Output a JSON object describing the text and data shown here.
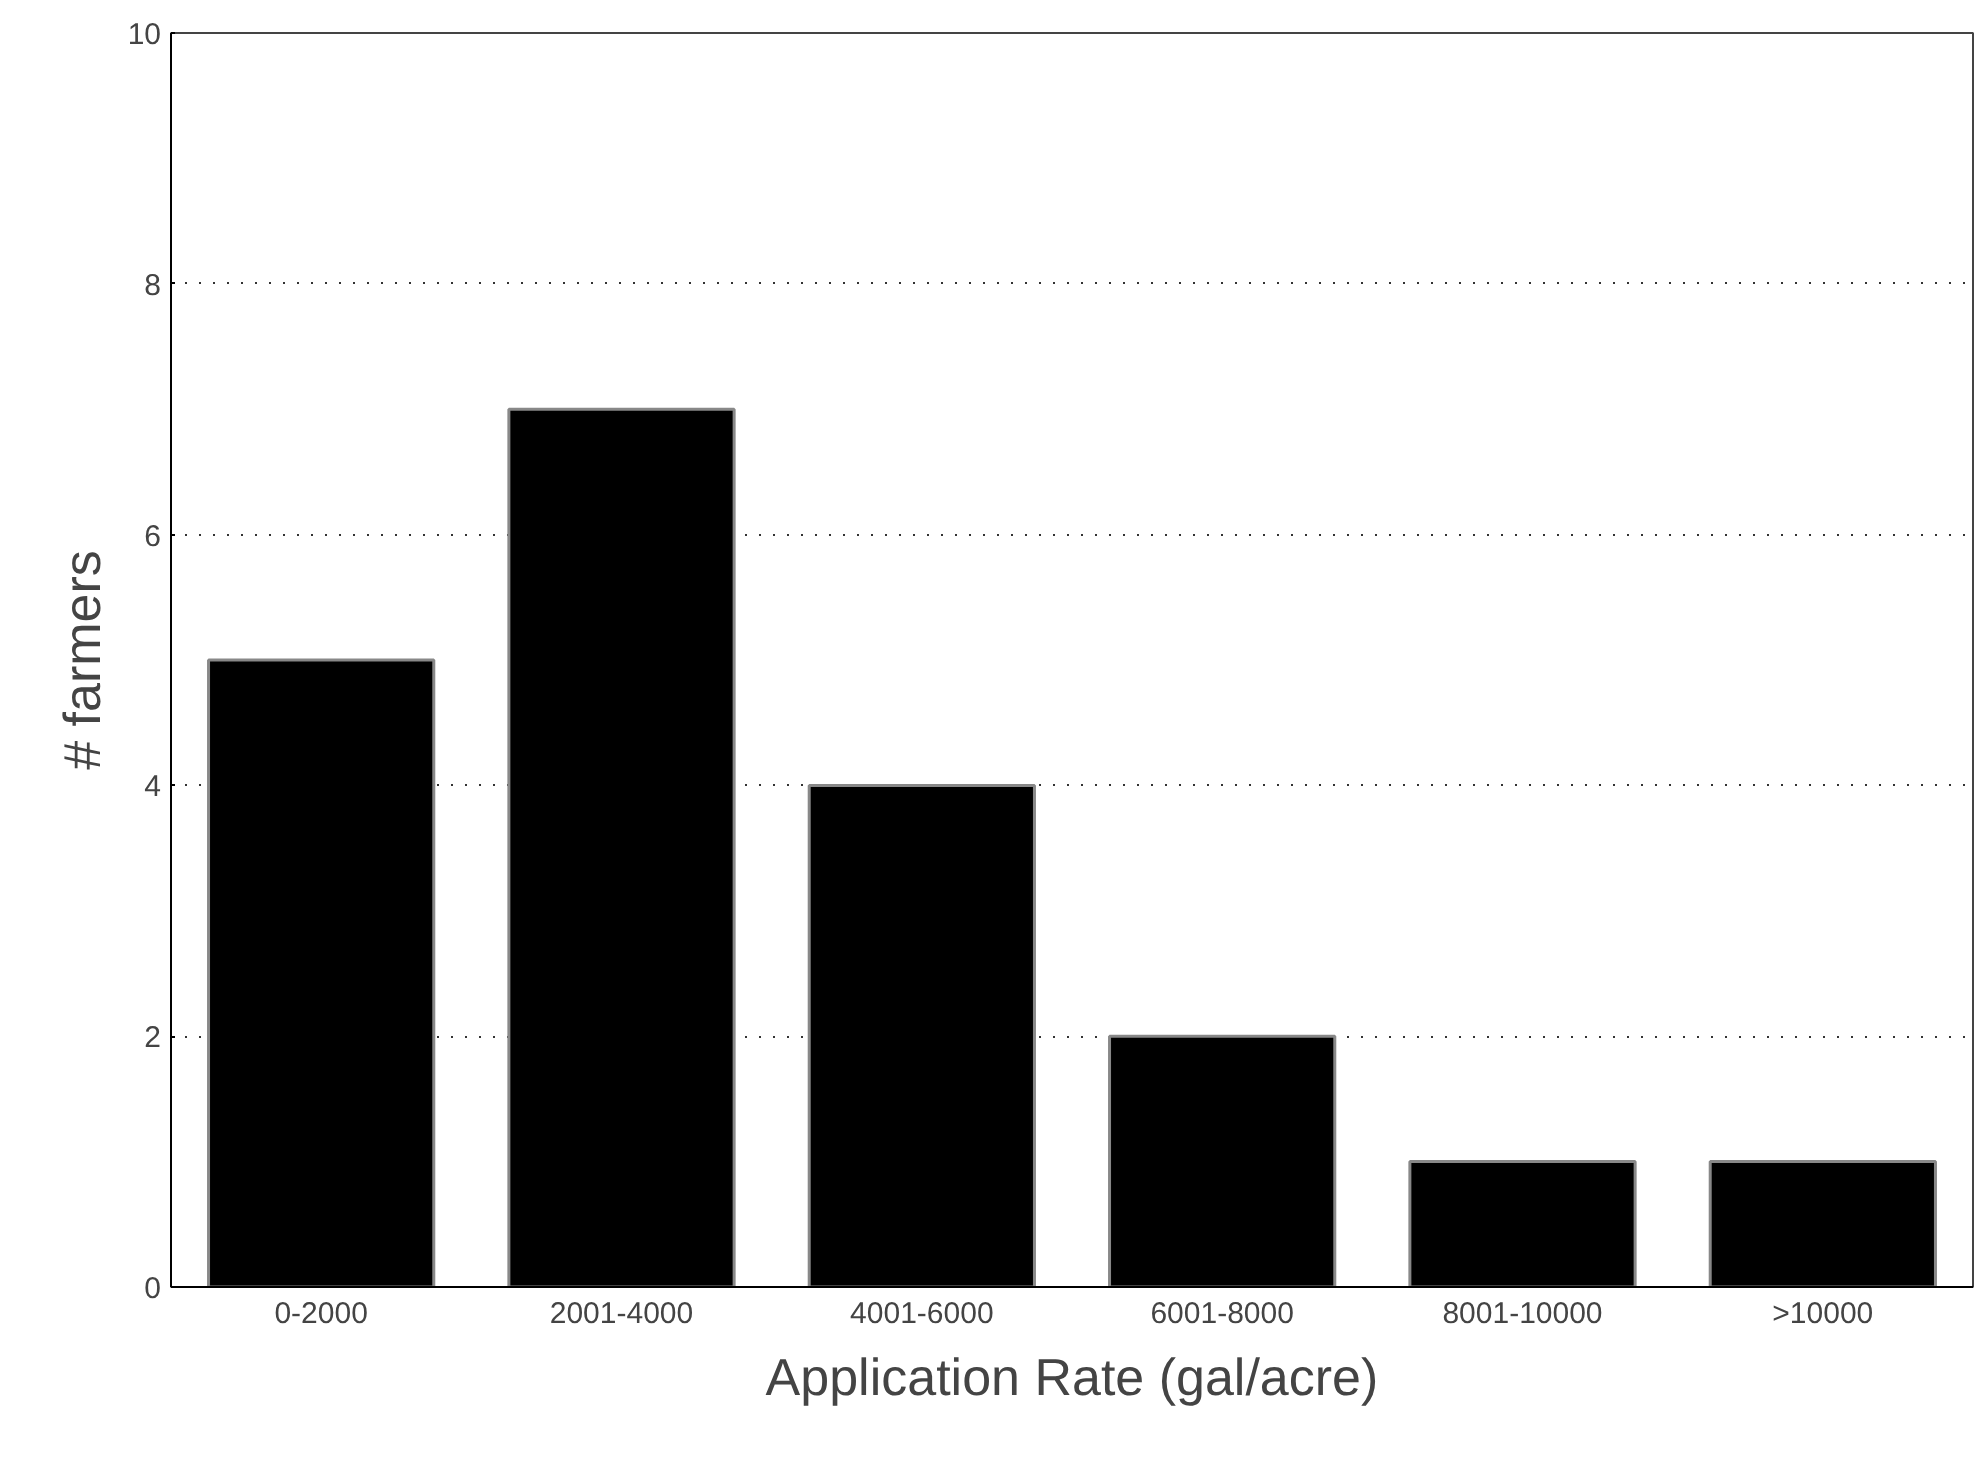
{
  "chart_data": {
    "type": "bar",
    "xlabel": "Application Rate (gal/acre)",
    "ylabel": "# farmers",
    "categories": [
      "0-2000",
      "2001-4000",
      "4001-6000",
      "6001-8000",
      "8001-10000",
      ">10000"
    ],
    "values": [
      5,
      7,
      4,
      2,
      1,
      1
    ],
    "color": "#000000",
    "ylim": [
      0,
      10
    ],
    "yticks": [
      0,
      2,
      4,
      6,
      8,
      10
    ],
    "grid": "y"
  }
}
